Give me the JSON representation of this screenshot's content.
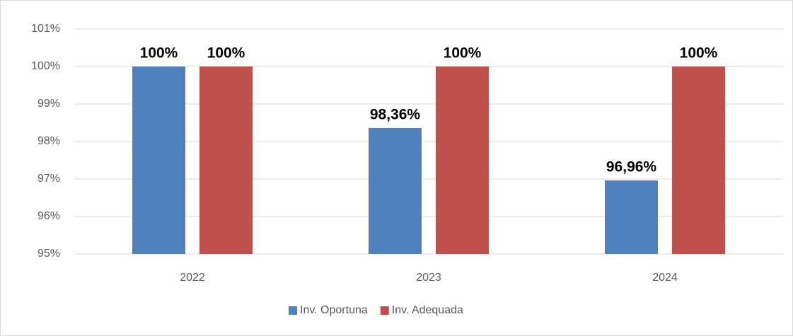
{
  "chart_data": {
    "type": "bar",
    "categories": [
      "2022",
      "2023",
      "2024"
    ],
    "series": [
      {
        "name": "Inv. Oportuna",
        "color": "#4f81bd",
        "values": [
          100,
          98.36,
          96.96
        ],
        "value_labels": [
          "100%",
          "98,36%",
          "96,96%"
        ]
      },
      {
        "name": "Inv. Adequada",
        "color": "#c0504d",
        "values": [
          100,
          100,
          100
        ],
        "value_labels": [
          "100%",
          "100%",
          "100%"
        ]
      }
    ],
    "ylim": [
      95,
      101
    ],
    "yticks": [
      {
        "value": 95,
        "label": "95%"
      },
      {
        "value": 96,
        "label": "96%"
      },
      {
        "value": 97,
        "label": "97%"
      },
      {
        "value": 98,
        "label": "98%"
      },
      {
        "value": 99,
        "label": "99%"
      },
      {
        "value": 100,
        "label": "100%"
      },
      {
        "value": 101,
        "label": "101%"
      }
    ],
    "grid": true,
    "legend": "bottom"
  }
}
